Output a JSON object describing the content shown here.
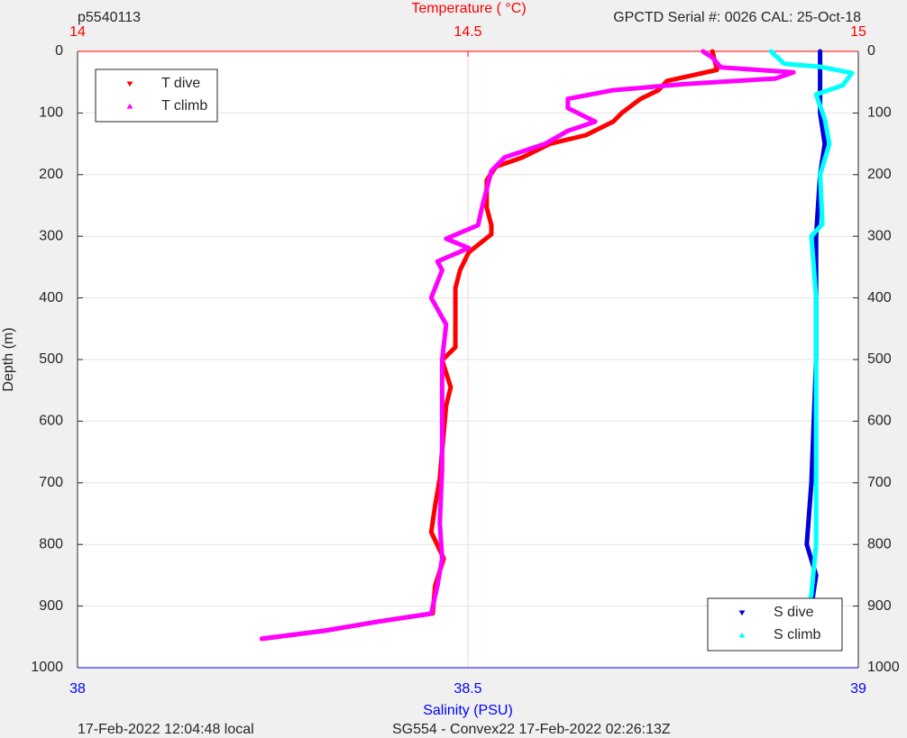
{
  "chart_data": {
    "type": "profile",
    "title_left": "p5540113",
    "title_center": "Temperature (    °C)",
    "title_right": "GPCTD Serial #: 0026 CAL: 25-Oct-18",
    "ylabel": "Depth (m)",
    "xlabel": "Salinity (PSU)",
    "footer_left": "17-Feb-2022 12:04:48 local",
    "footer_center": "SG554 - Convex22 17-Feb-2022 02:26:13Z",
    "ylim": [
      0,
      1000
    ],
    "yticks": [
      0,
      100,
      200,
      300,
      400,
      500,
      600,
      700,
      800,
      900,
      1000
    ],
    "y_reversed": true,
    "xlim": [
      38,
      39
    ],
    "xticks": [
      38,
      38.5,
      39
    ],
    "x_color": "#0000ff",
    "x2lim": [
      14,
      15
    ],
    "x2ticks": [
      14,
      14.5,
      15
    ],
    "x2_color": "#ff0000",
    "grid": true,
    "series": [
      {
        "name": "T dive",
        "color": "#ff0000",
        "xaxis": "x2",
        "marker": "down",
        "legend": "upper left",
        "values": [
          0,
          30,
          48,
          63,
          77,
          100,
          114,
          136,
          150,
          172,
          187,
          209,
          253,
          282,
          297,
          326,
          355,
          384,
          443,
          480,
          501,
          545,
          575,
          648,
          693,
          737,
          780,
          823,
          867,
          912,
          925,
          940,
          953
        ],
        "x": [
          14.813,
          14.819,
          14.755,
          14.744,
          14.721,
          14.697,
          14.686,
          14.651,
          14.605,
          14.57,
          14.536,
          14.524,
          14.524,
          14.53,
          14.53,
          14.501,
          14.49,
          14.484,
          14.484,
          14.484,
          14.467,
          14.478,
          14.472,
          14.467,
          14.464,
          14.458,
          14.453,
          14.469,
          14.458,
          14.455,
          14.386,
          14.316,
          14.236
        ]
      },
      {
        "name": "T climb",
        "color": "#ff00ff",
        "xaxis": "x2",
        "marker": "up",
        "legend": "upper left",
        "values": [
          0,
          10,
          26,
          34,
          44,
          53,
          63,
          77,
          92,
          114,
          129,
          150,
          172,
          194,
          253,
          282,
          304,
          319,
          341,
          355,
          400,
          443,
          501,
          590,
          678,
          765,
          823,
          867,
          912,
          925,
          940,
          953
        ],
        "x": [
          14.801,
          14.813,
          14.824,
          14.917,
          14.894,
          14.778,
          14.686,
          14.628,
          14.628,
          14.663,
          14.628,
          14.599,
          14.547,
          14.53,
          14.518,
          14.513,
          14.472,
          14.501,
          14.461,
          14.467,
          14.453,
          14.472,
          14.467,
          14.467,
          14.467,
          14.464,
          14.467,
          14.461,
          14.453,
          14.386,
          14.316,
          14.236
        ]
      },
      {
        "name": "S dive",
        "color": "#0000dd",
        "xaxis": "x",
        "marker": "down",
        "legend": "lower right",
        "values": [
          0,
          100,
          150,
          200,
          300,
          500,
          700,
          800,
          850,
          900,
          930,
          955
        ],
        "x": [
          38.951,
          38.951,
          38.957,
          38.951,
          38.946,
          38.946,
          38.94,
          38.934,
          38.946,
          38.94,
          38.928,
          38.894
        ]
      },
      {
        "name": "S climb",
        "color": "#00ffff",
        "xaxis": "x",
        "marker": "up",
        "legend": "lower right",
        "values": [
          0,
          20,
          25,
          35,
          55,
          70,
          110,
          150,
          200,
          280,
          300,
          400,
          600,
          800,
          880,
          920,
          940,
          955
        ],
        "x": [
          38.888,
          38.905,
          38.951,
          38.992,
          38.98,
          38.946,
          38.957,
          38.963,
          38.951,
          38.954,
          38.94,
          38.946,
          38.946,
          38.946,
          38.94,
          38.934,
          38.923,
          38.882
        ]
      }
    ]
  }
}
